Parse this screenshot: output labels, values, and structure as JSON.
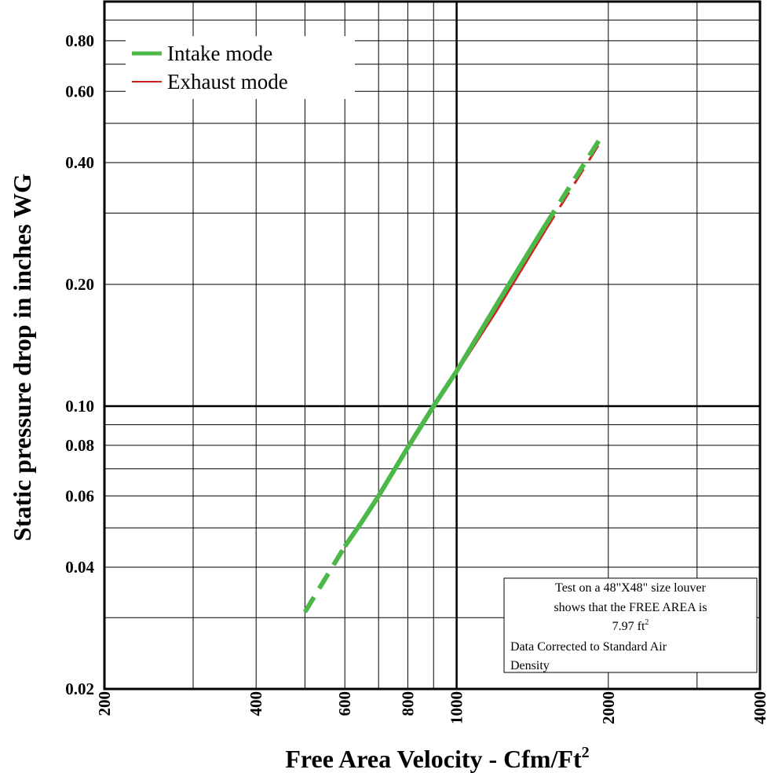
{
  "chart_data": {
    "type": "line",
    "xlabel": "Free Area Velocity - Cfm/Ft",
    "xlabel_sup": "2",
    "ylabel": "Static pressure drop in inches WG",
    "x_scale": "log",
    "y_scale": "log",
    "xlim": [
      200,
      4000
    ],
    "ylim": [
      0.02,
      1.0
    ],
    "x_ticks": [
      200,
      400,
      600,
      800,
      1000,
      2000,
      4000
    ],
    "x_tick_labels": [
      "200",
      "400",
      "600",
      "800",
      "1000",
      "2000",
      "4000"
    ],
    "y_ticks": [
      0.02,
      0.04,
      0.06,
      0.08,
      0.1,
      0.2,
      0.4,
      0.6,
      0.8
    ],
    "y_tick_labels": [
      "0.02",
      "0.04",
      "0.06",
      "0.08",
      "0.10",
      "0.20",
      "0.40",
      "0.60",
      "0.80"
    ],
    "grid": true,
    "legend_position": "top-left",
    "series": [
      {
        "name": "Intake mode",
        "color": "#4cb848",
        "solid": [
          [
            600,
            0.045
          ],
          [
            650,
            0.052
          ],
          [
            700,
            0.06
          ],
          [
            800,
            0.079
          ],
          [
            900,
            0.1
          ],
          [
            1000,
            0.122
          ],
          [
            1200,
            0.178
          ],
          [
            1500,
            0.28
          ]
        ],
        "dashed_low": [
          [
            500,
            0.031
          ],
          [
            600,
            0.045
          ]
        ],
        "dashed_high": [
          [
            1500,
            0.28
          ],
          [
            1930,
            0.46
          ]
        ]
      },
      {
        "name": "Exhaust mode",
        "color": "#cc2222",
        "solid": [
          [
            600,
            0.045
          ],
          [
            650,
            0.052
          ],
          [
            700,
            0.06
          ],
          [
            800,
            0.079
          ],
          [
            900,
            0.1
          ],
          [
            1000,
            0.121
          ],
          [
            1200,
            0.172
          ],
          [
            1500,
            0.272
          ]
        ],
        "dashed_low": [
          [
            500,
            0.031
          ],
          [
            600,
            0.045
          ]
        ],
        "dashed_high": [
          [
            1500,
            0.272
          ],
          [
            1930,
            0.45
          ]
        ]
      }
    ],
    "annotation": {
      "line1": "Test on a 48\"X48\" size louver",
      "line2": "shows that the FREE AREA is",
      "line3": "7.97 ft",
      "line3_sup": "2",
      "line4": "Data Corrected to Standard Air",
      "line5": "Density"
    }
  }
}
